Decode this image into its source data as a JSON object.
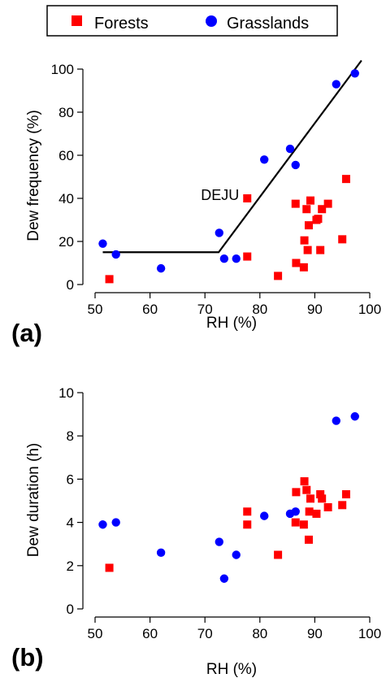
{
  "legend": {
    "items": [
      {
        "label": "Forests",
        "marker": "square",
        "color": "#ff0000"
      },
      {
        "label": "Grasslands",
        "marker": "circle",
        "color": "#0000ff"
      }
    ]
  },
  "chart_data": [
    {
      "type": "scatter",
      "panel_label": "(a)",
      "xlabel": "RH (%)",
      "ylabel": "Dew frequency (%)",
      "xlim": [
        50,
        100
      ],
      "ylim": [
        0,
        100
      ],
      "xticks": [
        50,
        60,
        70,
        80,
        90,
        100
      ],
      "yticks": [
        0,
        20,
        40,
        60,
        80,
        100
      ],
      "grid": false,
      "series": [
        {
          "name": "Forests",
          "marker": "square",
          "color": "#ff0000",
          "x": [
            52.6,
            77.7,
            77.7,
            83.3,
            86.5,
            86.6,
            88.0,
            88.1,
            88.5,
            88.7,
            88.9,
            89.2,
            90.3,
            90.6,
            91.0,
            91.3,
            92.4,
            95.0,
            95.7
          ],
          "y": [
            2.5,
            40,
            13,
            4,
            37.5,
            10,
            8,
            20.5,
            35,
            16,
            27.5,
            39,
            30,
            30.5,
            16,
            35,
            37.5,
            21,
            49
          ]
        },
        {
          "name": "Grasslands",
          "marker": "circle",
          "color": "#0000ff",
          "x": [
            51.4,
            53.8,
            62.0,
            72.6,
            73.5,
            75.7,
            80.8,
            85.5,
            86.5,
            93.9,
            97.3
          ],
          "y": [
            19,
            14,
            7.5,
            24,
            12,
            12,
            58,
            63,
            55.5,
            93,
            98
          ]
        }
      ],
      "fit_line": {
        "x": [
          51.4,
          72.5,
          98.5
        ],
        "y": [
          15,
          15,
          104
        ]
      },
      "annotations": [
        {
          "text": "DEJU",
          "x": 77.7,
          "y": 40
        }
      ]
    },
    {
      "type": "scatter",
      "panel_label": "(b)",
      "xlabel": "RH (%)",
      "ylabel": "Dew duration (h)",
      "xlim": [
        50,
        100
      ],
      "ylim": [
        0,
        10
      ],
      "xticks": [
        50,
        60,
        70,
        80,
        90,
        100
      ],
      "yticks": [
        0,
        2,
        4,
        6,
        8,
        10
      ],
      "grid": false,
      "series": [
        {
          "name": "Forests",
          "marker": "square",
          "color": "#ff0000",
          "x": [
            52.6,
            77.7,
            77.7,
            83.3,
            86.5,
            86.6,
            88.0,
            88.1,
            88.5,
            88.9,
            89.0,
            89.2,
            90.3,
            91.0,
            91.3,
            92.4,
            95.0,
            95.7
          ],
          "y": [
            1.9,
            4.5,
            3.9,
            2.5,
            4.0,
            5.4,
            3.9,
            5.9,
            5.5,
            3.2,
            4.5,
            5.1,
            4.4,
            5.3,
            5.1,
            4.7,
            4.8,
            5.3
          ]
        },
        {
          "name": "Grasslands",
          "marker": "circle",
          "color": "#0000ff",
          "x": [
            51.4,
            53.8,
            62.0,
            72.6,
            73.5,
            75.7,
            80.8,
            85.5,
            86.5,
            93.9,
            97.3
          ],
          "y": [
            3.9,
            4.0,
            2.6,
            3.1,
            1.4,
            2.5,
            4.3,
            4.4,
            4.5,
            8.7,
            8.9
          ]
        }
      ],
      "annotations": []
    }
  ]
}
